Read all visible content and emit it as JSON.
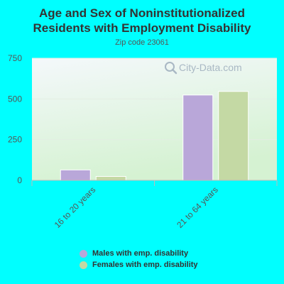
{
  "header": {
    "title_line1": "Age and Sex of Noninstitutionalized",
    "title_line2": "Residents with Employment Disability",
    "subtitle": "Zip code 23061"
  },
  "watermark": {
    "text": "City-Data.com",
    "icon": "magnifier-icon"
  },
  "colors": {
    "page_background": "#00ffff",
    "males": "#b9a7d9",
    "females": "#c4d9a4",
    "plot_gradient_top": "#f4f8fb",
    "plot_gradient_bottom": "#d5f2d2"
  },
  "chart_data": {
    "type": "bar",
    "title": "Age and Sex of Noninstitutionalized Residents with Employment Disability",
    "subtitle": "Zip code 23061",
    "categories": [
      "16 to 20 years",
      "21 to 64 years"
    ],
    "series": [
      {
        "name": "Males with emp. disability",
        "values": [
          64,
          524
        ],
        "color": "#b9a7d9"
      },
      {
        "name": "Females with emp. disability",
        "values": [
          24,
          546
        ],
        "color": "#c4d9a4"
      }
    ],
    "ylim": [
      0,
      750
    ],
    "yticks": [
      0,
      250,
      500,
      750
    ],
    "xlabel": "",
    "ylabel": "",
    "grid": true,
    "legend_position": "bottom"
  }
}
